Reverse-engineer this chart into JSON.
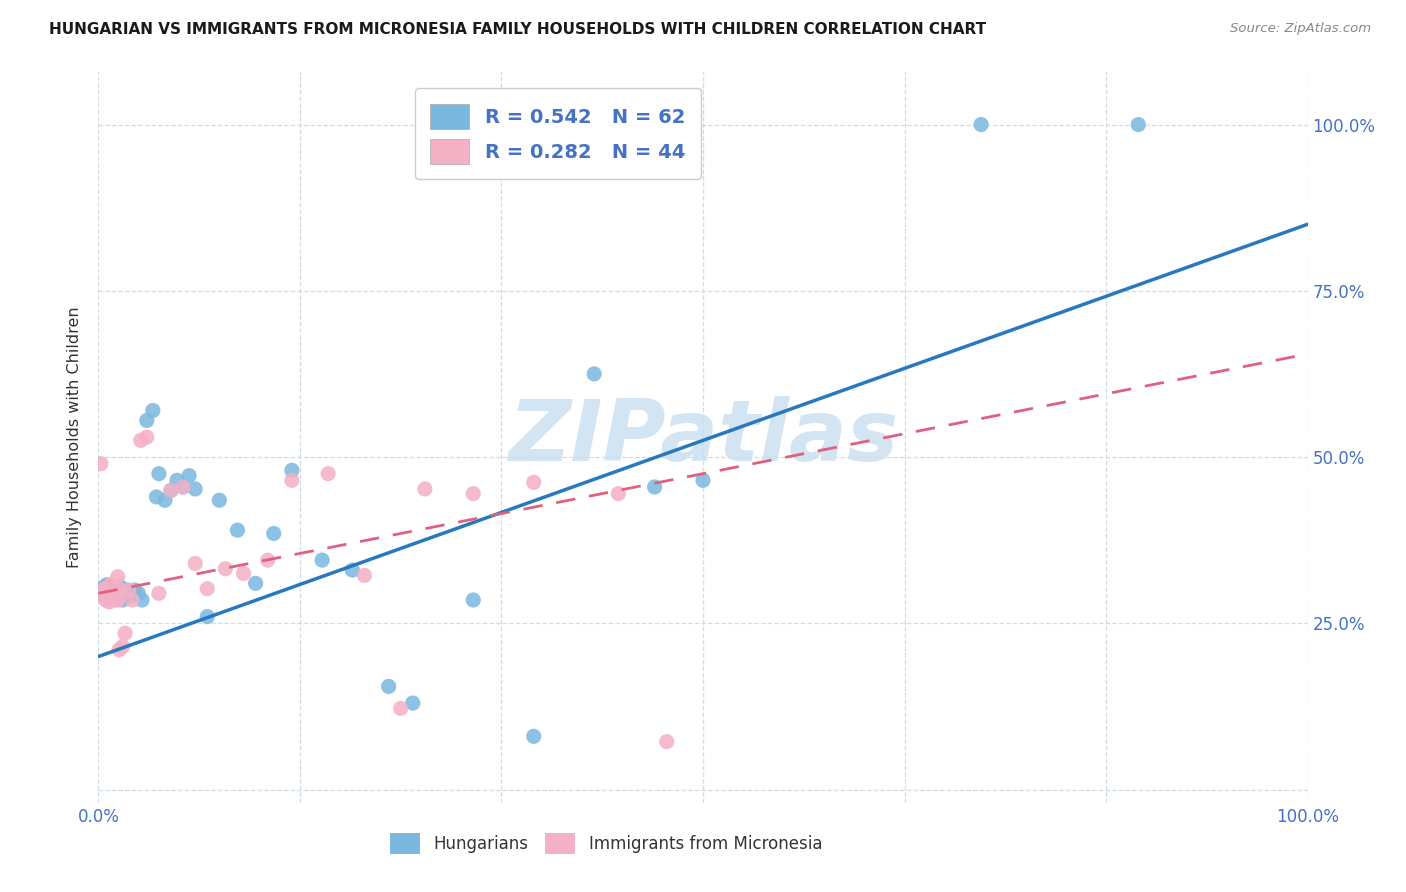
{
  "title": "HUNGARIAN VS IMMIGRANTS FROM MICRONESIA FAMILY HOUSEHOLDS WITH CHILDREN CORRELATION CHART",
  "source": "Source: ZipAtlas.com",
  "ylabel": "Family Households with Children",
  "xlim": [
    0,
    1
  ],
  "ylim": [
    -0.02,
    1.08
  ],
  "ytick_positions": [
    0.0,
    0.25,
    0.5,
    0.75,
    1.0
  ],
  "ytick_labels_right": [
    "",
    "25.0%",
    "50.0%",
    "75.0%",
    "100.0%"
  ],
  "xtick_positions": [
    0.0,
    0.1667,
    0.3333,
    0.5,
    0.6667,
    0.8333,
    1.0
  ],
  "xtick_labels": [
    "0.0%",
    "",
    "",
    "",
    "",
    "",
    "100.0%"
  ],
  "blue_color": "#7ab8e0",
  "pink_color": "#f4b0c5",
  "blue_line_color": "#2878c0",
  "pink_line_color": "#e06080",
  "watermark_color": "#c8dff0",
  "legend_line1": "R = 0.542   N = 62",
  "legend_line2": "R = 0.282   N = 44",
  "blue_scatter_x": [
    0.002,
    0.003,
    0.004,
    0.004,
    0.005,
    0.005,
    0.006,
    0.006,
    0.007,
    0.007,
    0.008,
    0.008,
    0.009,
    0.009,
    0.01,
    0.01,
    0.011,
    0.012,
    0.013,
    0.013,
    0.014,
    0.015,
    0.016,
    0.017,
    0.018,
    0.019,
    0.02,
    0.021,
    0.022,
    0.023,
    0.025,
    0.027,
    0.03,
    0.033,
    0.036,
    0.04,
    0.045,
    0.048,
    0.05,
    0.055,
    0.06,
    0.065,
    0.07,
    0.075,
    0.08,
    0.09,
    0.1,
    0.115,
    0.13,
    0.145,
    0.16,
    0.185,
    0.21,
    0.24,
    0.26,
    0.31,
    0.36,
    0.41,
    0.46,
    0.5,
    0.73,
    0.86
  ],
  "blue_scatter_y": [
    0.295,
    0.298,
    0.302,
    0.292,
    0.295,
    0.305,
    0.29,
    0.3,
    0.295,
    0.308,
    0.288,
    0.298,
    0.293,
    0.303,
    0.29,
    0.3,
    0.295,
    0.298,
    0.292,
    0.302,
    0.295,
    0.29,
    0.3,
    0.295,
    0.305,
    0.29,
    0.285,
    0.298,
    0.292,
    0.3,
    0.29,
    0.295,
    0.3,
    0.295,
    0.285,
    0.555,
    0.57,
    0.44,
    0.475,
    0.435,
    0.45,
    0.465,
    0.455,
    0.472,
    0.452,
    0.26,
    0.435,
    0.39,
    0.31,
    0.385,
    0.48,
    0.345,
    0.33,
    0.155,
    0.13,
    0.285,
    0.08,
    0.625,
    0.455,
    0.465,
    1.0,
    1.0
  ],
  "pink_scatter_x": [
    0.002,
    0.003,
    0.004,
    0.005,
    0.006,
    0.007,
    0.008,
    0.009,
    0.01,
    0.011,
    0.012,
    0.013,
    0.014,
    0.015,
    0.016,
    0.017,
    0.018,
    0.02,
    0.022,
    0.025,
    0.028,
    0.035,
    0.04,
    0.05,
    0.06,
    0.07,
    0.08,
    0.09,
    0.105,
    0.12,
    0.14,
    0.16,
    0.19,
    0.22,
    0.25,
    0.27,
    0.31,
    0.36,
    0.43,
    0.47,
    0.01,
    0.012,
    0.014,
    0.016
  ],
  "pink_scatter_y": [
    0.49,
    0.295,
    0.298,
    0.302,
    0.285,
    0.298,
    0.292,
    0.282,
    0.308,
    0.292,
    0.302,
    0.295,
    0.292,
    0.285,
    0.32,
    0.21,
    0.3,
    0.215,
    0.235,
    0.3,
    0.285,
    0.525,
    0.53,
    0.295,
    0.45,
    0.455,
    0.34,
    0.302,
    0.332,
    0.325,
    0.345,
    0.465,
    0.475,
    0.322,
    0.122,
    0.452,
    0.445,
    0.462,
    0.445,
    0.072,
    0.298,
    0.295,
    0.292,
    0.285
  ],
  "blue_line": [
    0.0,
    0.2,
    1.0,
    0.85
  ],
  "pink_line": [
    0.0,
    0.295,
    1.0,
    0.655
  ],
  "grid_color": "#d0dce8",
  "axis_color": "#4472c4",
  "title_color": "#1a1a1a",
  "source_color": "#888888",
  "background": "#ffffff"
}
